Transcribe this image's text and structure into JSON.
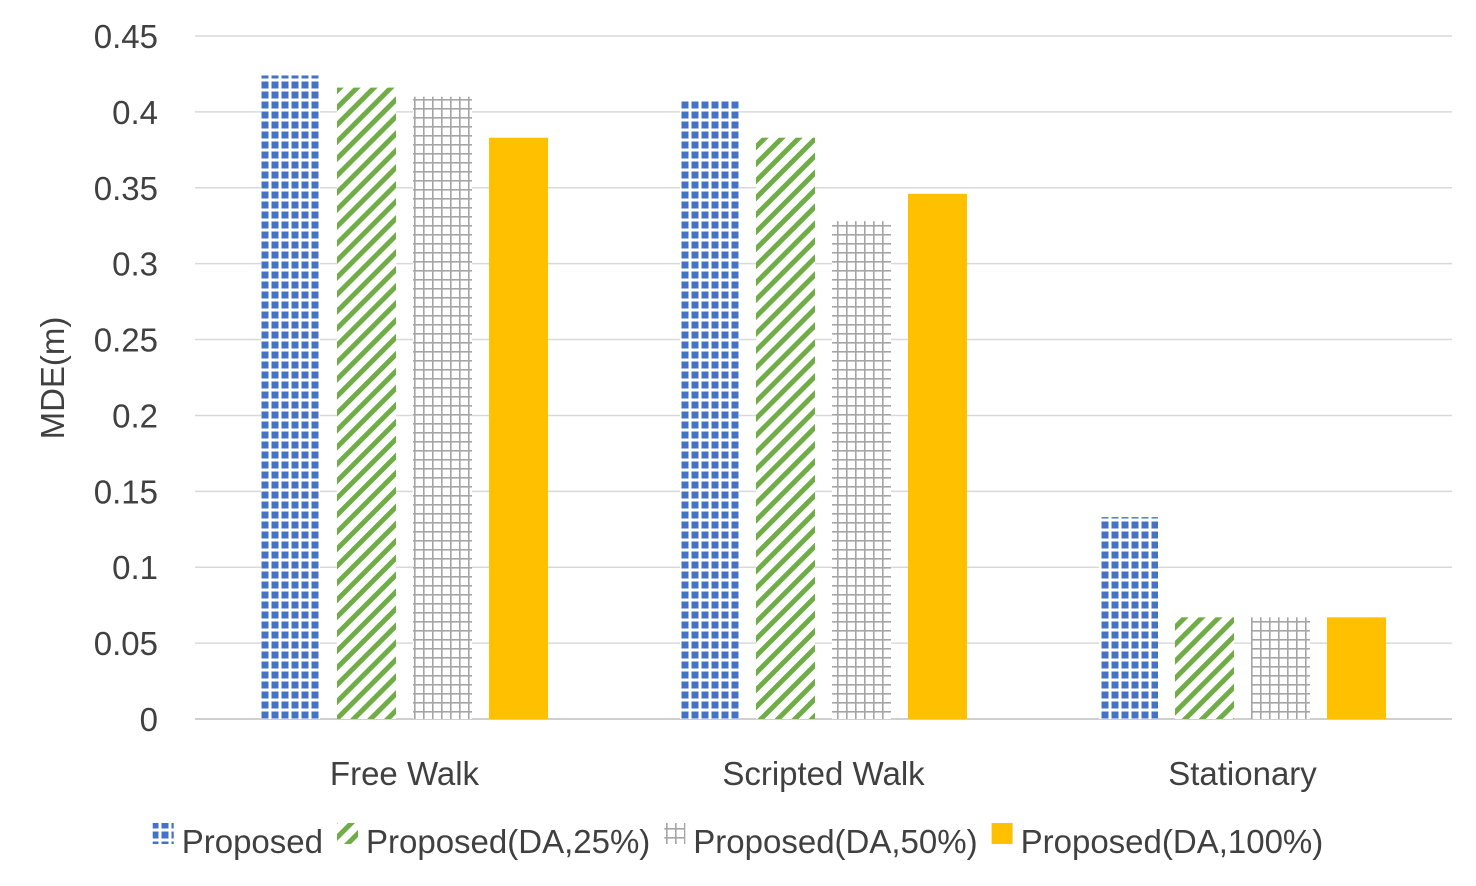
{
  "chart_data": {
    "type": "bar",
    "title": "",
    "xlabel": "",
    "ylabel": "MDE(m)",
    "ylim": [
      0,
      0.45
    ],
    "yticks": [
      0,
      0.05,
      0.1,
      0.15,
      0.2,
      0.25,
      0.3,
      0.35,
      0.4,
      0.45
    ],
    "ytick_labels": [
      "0",
      "0.05",
      "0.1",
      "0.15",
      "0.2",
      "0.25",
      "0.3",
      "0.35",
      "0.4",
      "0.45"
    ],
    "grid": true,
    "legend_position": "bottom",
    "categories": [
      "Free Walk",
      "Scripted Walk",
      "Stationary"
    ],
    "series": [
      {
        "name": "Proposed",
        "values": [
          0.424,
          0.407,
          0.133
        ],
        "color": "#4472C4",
        "pattern": "dots-grid"
      },
      {
        "name": "Proposed(DA,25%)",
        "values": [
          0.416,
          0.383,
          0.067
        ],
        "color": "#70AD47",
        "pattern": "diagonal-stripes"
      },
      {
        "name": "Proposed(DA,50%)",
        "values": [
          0.41,
          0.328,
          0.067
        ],
        "color": "#A5A5A5",
        "pattern": "grid"
      },
      {
        "name": "Proposed(DA,100%)",
        "values": [
          0.383,
          0.346,
          0.067
        ],
        "color": "#FFC000",
        "pattern": "solid"
      }
    ]
  }
}
